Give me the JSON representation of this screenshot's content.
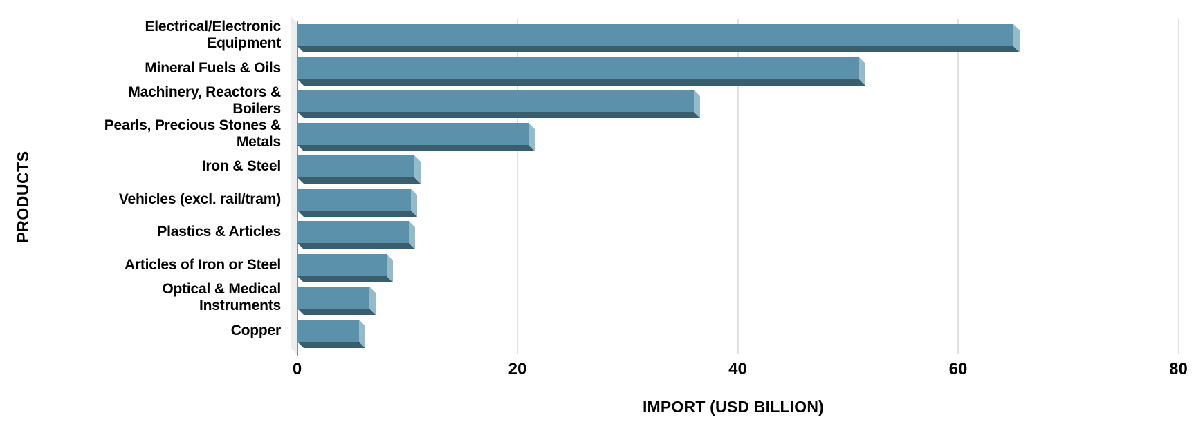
{
  "chart_data": {
    "type": "bar",
    "orientation": "horizontal",
    "title": "",
    "xlabel": "IMPORT (USD BILLION)",
    "ylabel": "PRODUCTS",
    "categories": [
      "Electrical/Electronic Equipment",
      "Mineral Fuels & Oils",
      "Machinery, Reactors & Boilers",
      "Pearls, Precious Stones & Metals",
      "Iron & Steel",
      "Vehicles (excl. rail/tram)",
      "Plastics & Articles",
      "Articles of Iron or Steel",
      "Optical & Medical Instruments",
      "Copper"
    ],
    "category_label_lines": [
      [
        "Electrical/Electronic",
        "Equipment"
      ],
      [
        "Mineral Fuels & Oils"
      ],
      [
        "Machinery, Reactors &",
        "Boilers"
      ],
      [
        "Pearls, Precious Stones &",
        "Metals"
      ],
      [
        "Iron & Steel"
      ],
      [
        "Vehicles (excl. rail/tram)"
      ],
      [
        "Plastics & Articles"
      ],
      [
        "Articles of Iron or Steel"
      ],
      [
        "Optical & Medical",
        "Instruments"
      ],
      [
        "Copper"
      ]
    ],
    "values": [
      65,
      51,
      36,
      21,
      10.6,
      10.3,
      10.1,
      8.1,
      6.5,
      5.6
    ],
    "xlim": [
      0,
      80
    ],
    "xticks": [
      0,
      20,
      40,
      60,
      80
    ],
    "xtick_labels": [
      "0",
      "20",
      "40",
      "60",
      "80"
    ],
    "grid": true,
    "legend": false,
    "colors": {
      "bar_face": "#5b91ab",
      "bar_side": "#94bbca",
      "bar_bottom": "#3b5e6f",
      "gridline": "#e1e1e1",
      "axis_wall": "#ececec",
      "axis_line": "#8c8c8c",
      "text": "#000000",
      "background": "#ffffff"
    }
  }
}
